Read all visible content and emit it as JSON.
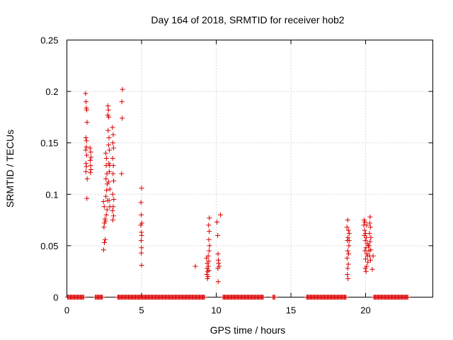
{
  "chart_data": {
    "type": "scatter",
    "title": "Day 164 of 2018, SRMTID for receiver hob2",
    "xlabel": "GPS time / hours",
    "ylabel": "SRMTID / TECUs",
    "xlim": [
      0,
      24.5
    ],
    "ylim": [
      0,
      0.25
    ],
    "xticks": [
      0,
      5,
      10,
      15,
      20
    ],
    "xtick_labels": [
      "0",
      "5",
      "10",
      "15",
      "20"
    ],
    "yticks": [
      0,
      0.05,
      0.1,
      0.15,
      0.2,
      0.25
    ],
    "ytick_labels": [
      "0",
      "0.05",
      "0.1",
      "0.15",
      "0.2",
      "0.25"
    ],
    "grid": true,
    "marker": "+",
    "color": "#dd0000",
    "zero_segments": [
      [
        0.05,
        1.15
      ],
      [
        1.9,
        2.4
      ],
      [
        3.4,
        9.25
      ],
      [
        10.45,
        13.2
      ],
      [
        13.8,
        13.95
      ],
      [
        16.05,
        18.7
      ],
      [
        20.55,
        22.85
      ]
    ],
    "series": [
      {
        "name": "SRMTID",
        "points": [
          [
            1.25,
            0.198
          ],
          [
            1.28,
            0.19
          ],
          [
            1.3,
            0.184
          ],
          [
            1.33,
            0.182
          ],
          [
            1.35,
            0.17
          ],
          [
            1.27,
            0.155
          ],
          [
            1.31,
            0.152
          ],
          [
            1.3,
            0.146
          ],
          [
            1.26,
            0.143
          ],
          [
            1.33,
            0.138
          ],
          [
            1.28,
            0.13
          ],
          [
            1.3,
            0.127
          ],
          [
            1.27,
            0.122
          ],
          [
            1.36,
            0.115
          ],
          [
            1.34,
            0.096
          ],
          [
            1.55,
            0.145
          ],
          [
            1.6,
            0.141
          ],
          [
            1.62,
            0.136
          ],
          [
            1.56,
            0.133
          ],
          [
            1.59,
            0.128
          ],
          [
            1.61,
            0.124
          ],
          [
            1.58,
            0.121
          ],
          [
            2.45,
            0.093
          ],
          [
            2.5,
            0.088
          ],
          [
            2.55,
            0.076
          ],
          [
            2.52,
            0.072
          ],
          [
            2.48,
            0.068
          ],
          [
            2.56,
            0.056
          ],
          [
            2.51,
            0.053
          ],
          [
            2.46,
            0.046
          ],
          [
            2.6,
            0.14
          ],
          [
            2.65,
            0.135
          ],
          [
            2.63,
            0.128
          ],
          [
            2.68,
            0.12
          ],
          [
            2.62,
            0.115
          ],
          [
            2.7,
            0.11
          ],
          [
            2.66,
            0.104
          ],
          [
            2.61,
            0.098
          ],
          [
            2.72,
            0.094
          ],
          [
            2.69,
            0.085
          ],
          [
            2.64,
            0.08
          ],
          [
            2.58,
            0.074
          ],
          [
            2.75,
            0.186
          ],
          [
            2.78,
            0.182
          ],
          [
            2.74,
            0.177
          ],
          [
            2.8,
            0.175
          ],
          [
            2.76,
            0.162
          ],
          [
            2.82,
            0.155
          ],
          [
            2.79,
            0.148
          ],
          [
            2.85,
            0.143
          ],
          [
            2.81,
            0.13
          ],
          [
            2.86,
            0.128
          ],
          [
            2.84,
            0.122
          ],
          [
            2.8,
            0.112
          ],
          [
            2.88,
            0.105
          ],
          [
            2.83,
            0.094
          ],
          [
            2.87,
            0.088
          ],
          [
            3.05,
            0.165
          ],
          [
            3.1,
            0.158
          ],
          [
            3.08,
            0.15
          ],
          [
            3.12,
            0.145
          ],
          [
            3.06,
            0.135
          ],
          [
            3.11,
            0.128
          ],
          [
            3.09,
            0.12
          ],
          [
            3.13,
            0.113
          ],
          [
            3.07,
            0.1
          ],
          [
            3.14,
            0.095
          ],
          [
            3.1,
            0.088
          ],
          [
            3.06,
            0.084
          ],
          [
            3.12,
            0.079
          ],
          [
            3.08,
            0.075
          ],
          [
            3.72,
            0.202
          ],
          [
            3.68,
            0.19
          ],
          [
            3.7,
            0.174
          ],
          [
            3.66,
            0.12
          ],
          [
            5.0,
            0.106
          ],
          [
            4.96,
            0.092
          ],
          [
            4.98,
            0.08
          ],
          [
            5.02,
            0.072
          ],
          [
            4.95,
            0.07
          ],
          [
            4.99,
            0.063
          ],
          [
            5.01,
            0.06
          ],
          [
            4.97,
            0.055
          ],
          [
            5.0,
            0.048
          ],
          [
            4.98,
            0.043
          ],
          [
            5.0,
            0.031
          ],
          [
            8.6,
            0.03
          ],
          [
            9.35,
            0.038
          ],
          [
            9.4,
            0.033
          ],
          [
            9.38,
            0.028
          ],
          [
            9.42,
            0.025
          ],
          [
            9.36,
            0.022
          ],
          [
            9.45,
            0.02
          ],
          [
            9.41,
            0.018
          ],
          [
            9.48,
            0.03
          ],
          [
            9.5,
            0.035
          ],
          [
            9.52,
            0.045
          ],
          [
            9.55,
            0.05
          ],
          [
            9.5,
            0.056
          ],
          [
            9.53,
            0.064
          ],
          [
            9.49,
            0.07
          ],
          [
            9.54,
            0.077
          ],
          [
            9.46,
            0.04
          ],
          [
            9.51,
            0.026
          ],
          [
            10.05,
            0.073
          ],
          [
            10.1,
            0.06
          ],
          [
            10.12,
            0.042
          ],
          [
            10.14,
            0.036
          ],
          [
            10.16,
            0.033
          ],
          [
            10.2,
            0.03
          ],
          [
            10.11,
            0.028
          ],
          [
            10.13,
            0.015
          ],
          [
            10.28,
            0.08
          ],
          [
            18.8,
            0.075
          ],
          [
            18.75,
            0.068
          ],
          [
            18.85,
            0.065
          ],
          [
            18.9,
            0.062
          ],
          [
            18.82,
            0.058
          ],
          [
            18.78,
            0.055
          ],
          [
            18.88,
            0.05
          ],
          [
            18.8,
            0.045
          ],
          [
            18.86,
            0.042
          ],
          [
            18.76,
            0.038
          ],
          [
            18.84,
            0.032
          ],
          [
            18.8,
            0.028
          ],
          [
            18.78,
            0.022
          ],
          [
            18.82,
            0.018
          ],
          [
            18.9,
            0.055
          ],
          [
            19.9,
            0.075
          ],
          [
            19.95,
            0.073
          ],
          [
            19.88,
            0.07
          ],
          [
            19.93,
            0.065
          ],
          [
            20.0,
            0.062
          ],
          [
            20.05,
            0.058
          ],
          [
            19.98,
            0.055
          ],
          [
            20.1,
            0.052
          ],
          [
            20.02,
            0.048
          ],
          [
            19.96,
            0.045
          ],
          [
            20.08,
            0.042
          ],
          [
            20.12,
            0.04
          ],
          [
            20.0,
            0.037
          ],
          [
            20.15,
            0.034
          ],
          [
            20.06,
            0.03
          ],
          [
            19.98,
            0.028
          ],
          [
            20.03,
            0.025
          ],
          [
            20.18,
            0.05
          ],
          [
            20.22,
            0.045
          ],
          [
            20.3,
            0.078
          ],
          [
            20.28,
            0.072
          ],
          [
            20.32,
            0.068
          ],
          [
            20.26,
            0.062
          ],
          [
            20.35,
            0.058
          ],
          [
            20.3,
            0.054
          ],
          [
            20.24,
            0.05
          ],
          [
            20.34,
            0.046
          ],
          [
            20.27,
            0.04
          ],
          [
            20.33,
            0.036
          ],
          [
            20.5,
            0.04
          ],
          [
            20.45,
            0.027
          ],
          [
            19.92,
            0.06
          ],
          [
            20.07,
            0.07
          ]
        ]
      }
    ]
  }
}
